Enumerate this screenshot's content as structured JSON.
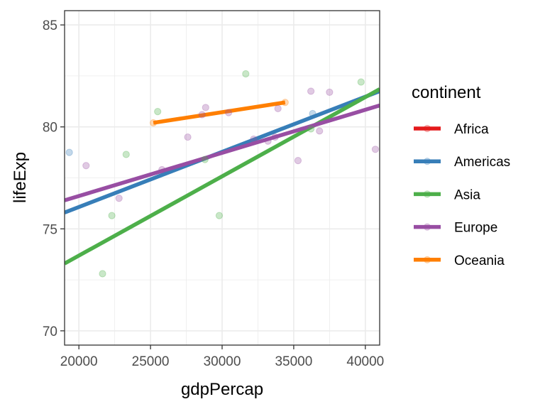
{
  "chart_data": {
    "type": "scatter",
    "xlabel": "gdpPercap",
    "ylabel": "lifeExp",
    "xlim": [
      19000,
      41000
    ],
    "ylim": [
      69.3,
      85.7
    ],
    "x_ticks": [
      20000,
      25000,
      30000,
      35000,
      40000
    ],
    "y_ticks": [
      70,
      75,
      80,
      85
    ],
    "grid": true,
    "legend": {
      "title": "continent",
      "position": "right",
      "entries": [
        "Africa",
        "Americas",
        "Asia",
        "Europe",
        "Oceania"
      ]
    },
    "series": [
      {
        "name": "Africa",
        "color": "#e41a1c",
        "points": [],
        "trend": null
      },
      {
        "name": "Americas",
        "color": "#377eb8",
        "points": [
          [
            19330,
            78.75
          ],
          [
            36320,
            80.65
          ]
        ],
        "trend": [
          [
            19000,
            75.8
          ],
          [
            41000,
            81.75
          ]
        ]
      },
      {
        "name": "Asia",
        "color": "#4daf4a",
        "points": [
          [
            21650,
            72.8
          ],
          [
            22300,
            75.65
          ],
          [
            23300,
            78.65
          ],
          [
            25500,
            80.75
          ],
          [
            28800,
            78.4
          ],
          [
            29800,
            75.65
          ],
          [
            31650,
            82.6
          ],
          [
            36200,
            79.9
          ],
          [
            39700,
            82.2
          ]
        ],
        "trend": [
          [
            19000,
            73.3
          ],
          [
            41000,
            81.85
          ]
        ]
      },
      {
        "name": "Europe",
        "color": "#984ea3",
        "points": [
          [
            20500,
            78.1
          ],
          [
            22800,
            76.5
          ],
          [
            25800,
            77.9
          ],
          [
            27600,
            79.5
          ],
          [
            28600,
            80.6
          ],
          [
            28850,
            80.95
          ],
          [
            30450,
            80.7
          ],
          [
            32200,
            79.4
          ],
          [
            33200,
            79.3
          ],
          [
            33700,
            79.5
          ],
          [
            33900,
            80.9
          ],
          [
            35300,
            78.35
          ],
          [
            36200,
            81.75
          ],
          [
            36800,
            79.8
          ],
          [
            37500,
            81.7
          ],
          [
            40700,
            78.9
          ]
        ],
        "trend": [
          [
            19000,
            76.4
          ],
          [
            41000,
            81.05
          ]
        ]
      },
      {
        "name": "Oceania",
        "color": "#ff7f00",
        "points": [
          [
            25200,
            80.2
          ],
          [
            34400,
            81.2
          ]
        ],
        "trend": [
          [
            25200,
            80.2
          ],
          [
            34400,
            81.2
          ]
        ]
      }
    ]
  }
}
